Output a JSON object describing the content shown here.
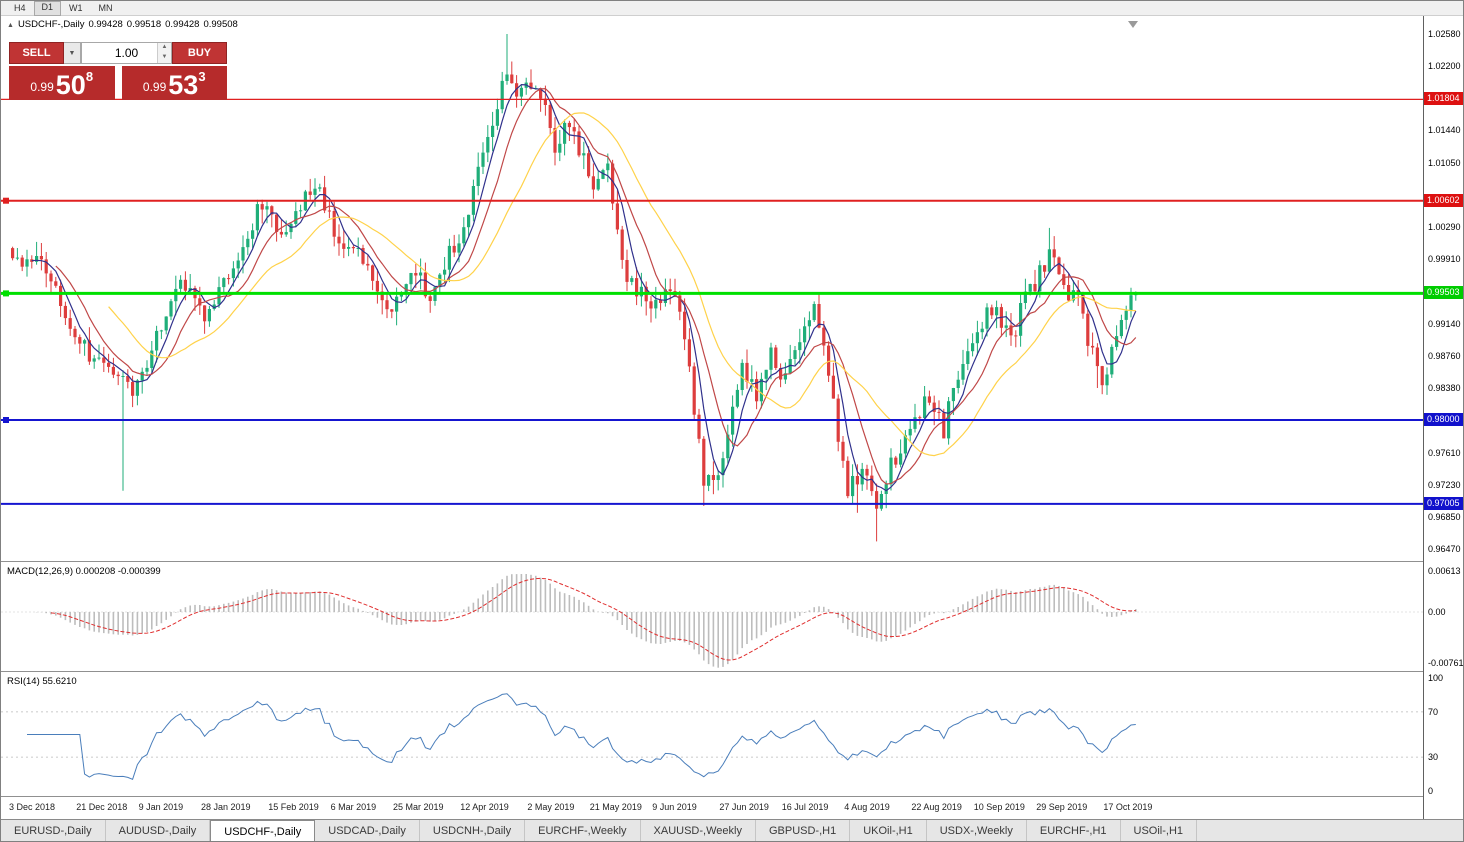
{
  "toolbar": {
    "timeframes": [
      "H4",
      "D1",
      "W1",
      "MN"
    ],
    "active": "D1"
  },
  "chart_header": {
    "marker": "▲",
    "symbol": "USDCHF-,Daily",
    "open": "0.99428",
    "high": "0.99518",
    "low": "0.99428",
    "close": "0.99508"
  },
  "trade_panel": {
    "sell_label": "SELL",
    "buy_label": "BUY",
    "volume": "1.00",
    "sell_price_small": "0.99",
    "sell_price_big": "50",
    "sell_price_sup": "8",
    "buy_price_small": "0.99",
    "buy_price_big": "53",
    "buy_price_sup": "3"
  },
  "price_axis_ticks": [
    "1.02580",
    "1.02200",
    "1.01440",
    "1.01050",
    "1.00290",
    "0.99910",
    "0.99140",
    "0.98760",
    "0.98380",
    "0.97610",
    "0.97230",
    "0.96850",
    "0.96470"
  ],
  "line_labels": [
    {
      "text": "1.01804",
      "price": 1.01804,
      "bg": "#dd1111"
    },
    {
      "text": "1.00602",
      "price": 1.00602,
      "bg": "#dd1111"
    },
    {
      "text": "0.99503",
      "price": 0.99503,
      "bg": "#00cc00"
    },
    {
      "text": "0.98000",
      "price": 0.98,
      "bg": "#1111cc"
    },
    {
      "text": "0.97005",
      "price": 0.97005,
      "bg": "#1111cc"
    }
  ],
  "macd_panel": {
    "label": "MACD(12,26,9) 0.000208 -0.000399",
    "axis_max": "0.00613",
    "axis_zero": "0.00",
    "axis_min": "-0.00761"
  },
  "rsi_panel": {
    "label": "RSI(14) 55.6210",
    "axis": [
      "100",
      "70",
      "30",
      "0"
    ]
  },
  "date_labels": [
    {
      "i": 0,
      "text": "3 Dec 2018"
    },
    {
      "i": 14,
      "text": "21 Dec 2018"
    },
    {
      "i": 27,
      "text": "9 Jan 2019"
    },
    {
      "i": 40,
      "text": "28 Jan 2019"
    },
    {
      "i": 54,
      "text": "15 Feb 2019"
    },
    {
      "i": 67,
      "text": "6 Mar 2019"
    },
    {
      "i": 80,
      "text": "25 Mar 2019"
    },
    {
      "i": 94,
      "text": "12 Apr 2019"
    },
    {
      "i": 108,
      "text": "2 May 2019"
    },
    {
      "i": 121,
      "text": "21 May 2019"
    },
    {
      "i": 134,
      "text": "9 Jun 2019"
    },
    {
      "i": 148,
      "text": "27 Jun 2019"
    },
    {
      "i": 161,
      "text": "16 Jul 2019"
    },
    {
      "i": 174,
      "text": "4 Aug 2019"
    },
    {
      "i": 188,
      "text": "22 Aug 2019"
    },
    {
      "i": 201,
      "text": "10 Sep 2019"
    },
    {
      "i": 214,
      "text": "29 Sep 2019"
    },
    {
      "i": 228,
      "text": "17 Oct 2019"
    }
  ],
  "tabs": [
    {
      "label": "EURUSD-,Daily",
      "active": false
    },
    {
      "label": "AUDUSD-,Daily",
      "active": false
    },
    {
      "label": "USDCHF-,Daily",
      "active": true
    },
    {
      "label": "USDCAD-,Daily",
      "active": false
    },
    {
      "label": "USDCNH-,Daily",
      "active": false
    },
    {
      "label": "EURCHF-,Weekly",
      "active": false
    },
    {
      "label": "XAUUSD-,Weekly",
      "active": false
    },
    {
      "label": "GBPUSD-,H1",
      "active": false
    },
    {
      "label": "UKOil-,H1",
      "active": false
    },
    {
      "label": "USDX-,Weekly",
      "active": false
    },
    {
      "label": "EURCHF-,H1",
      "active": false
    },
    {
      "label": "USOil-,H1",
      "active": false
    }
  ],
  "chart_data": {
    "type": "candlestick",
    "symbol": "USDCHF",
    "timeframe": "Daily",
    "n_candles": 235,
    "last_close": 0.99508,
    "price_min": 0.9647,
    "price_max": 1.0258,
    "waypoints": [
      [
        0,
        0.9985
      ],
      [
        5,
        0.9996
      ],
      [
        13,
        0.99
      ],
      [
        18,
        0.9868
      ],
      [
        21,
        0.9852
      ],
      [
        23,
        0.9845
      ],
      [
        26,
        0.9838
      ],
      [
        30,
        0.99
      ],
      [
        35,
        0.9958
      ],
      [
        40,
        0.9925
      ],
      [
        46,
        0.9985
      ],
      [
        52,
        1.0058
      ],
      [
        56,
        1.0022
      ],
      [
        63,
        1.0078
      ],
      [
        68,
        1.0012
      ],
      [
        72,
        1.0002
      ],
      [
        78,
        0.9925
      ],
      [
        83,
        0.9978
      ],
      [
        87,
        0.9952
      ],
      [
        94,
        1.003
      ],
      [
        99,
        1.013
      ],
      [
        103,
        1.0215
      ],
      [
        106,
        1.0185
      ],
      [
        109,
        1.0205
      ],
      [
        113,
        1.0125
      ],
      [
        116,
        1.0152
      ],
      [
        121,
        1.0082
      ],
      [
        124,
        1.0098
      ],
      [
        128,
        0.9965
      ],
      [
        134,
        0.9932
      ],
      [
        137,
        0.9962
      ],
      [
        140,
        0.9905
      ],
      [
        144,
        0.9725
      ],
      [
        148,
        0.9752
      ],
      [
        152,
        0.9868
      ],
      [
        155,
        0.9822
      ],
      [
        158,
        0.9882
      ],
      [
        161,
        0.9845
      ],
      [
        164,
        0.9902
      ],
      [
        167,
        0.9932
      ],
      [
        170,
        0.9852
      ],
      [
        174,
        0.9718
      ],
      [
        177,
        0.9735
      ],
      [
        180,
        0.9705
      ],
      [
        183,
        0.9745
      ],
      [
        188,
        0.98
      ],
      [
        191,
        0.9832
      ],
      [
        194,
        0.9788
      ],
      [
        198,
        0.9878
      ],
      [
        201,
        0.9912
      ],
      [
        205,
        0.9932
      ],
      [
        208,
        0.9892
      ],
      [
        211,
        0.9948
      ],
      [
        214,
        0.9972
      ],
      [
        216,
        1.0002
      ],
      [
        220,
        0.9935
      ],
      [
        222,
        0.9952
      ],
      [
        224,
        0.9892
      ],
      [
        227,
        0.9848
      ],
      [
        230,
        0.9902
      ],
      [
        232,
        0.9928
      ],
      [
        234,
        0.9951
      ]
    ],
    "spikes": [
      {
        "i": 23,
        "low": 0.9716
      },
      {
        "i": 103,
        "high": 1.0258
      },
      {
        "i": 144,
        "low": 0.9698
      },
      {
        "i": 176,
        "low": 0.969
      },
      {
        "i": 180,
        "low": 0.9656
      },
      {
        "i": 216,
        "high": 1.0028
      },
      {
        "i": 226,
        "low": 0.9838
      }
    ],
    "h_lines": [
      {
        "price": 1.01804,
        "color": "#e02020",
        "width": 1.2,
        "marker": false
      },
      {
        "price": 1.00602,
        "color": "#e02020",
        "width": 2,
        "marker": true
      },
      {
        "price": 0.99503,
        "color": "#00e000",
        "width": 3,
        "marker": true
      },
      {
        "price": 0.98,
        "color": "#1515d0",
        "width": 2,
        "marker": true
      },
      {
        "price": 0.97005,
        "color": "#1515d0",
        "width": 2,
        "marker": false
      }
    ],
    "ma": [
      {
        "period": 5,
        "color": "#30318c"
      },
      {
        "period": 10,
        "color": "#c04848"
      },
      {
        "period": 21,
        "color": "#ffd24a"
      }
    ],
    "macd_scale": {
      "max": 0.00613,
      "min": -0.00761
    },
    "rsi_levels": [
      70,
      30
    ],
    "colors": {
      "up": "#1fae79",
      "down": "#dd3d3d",
      "macd_hist": "#bdbdbd",
      "macd_signal": "#e03030",
      "rsi": "#4a7ebb"
    }
  }
}
